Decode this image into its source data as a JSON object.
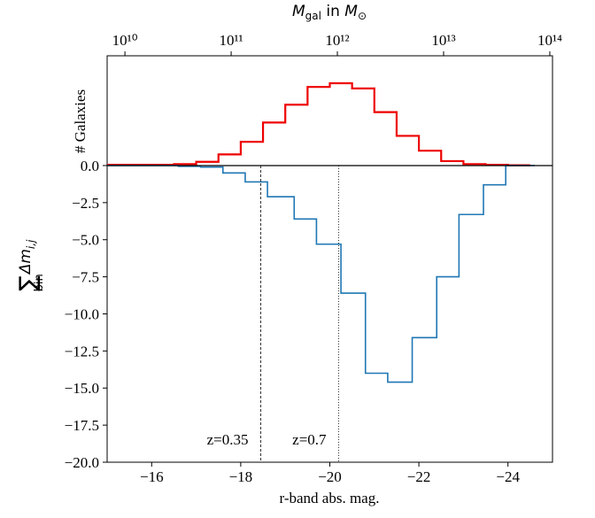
{
  "chart_data": {
    "type": "step",
    "xlabel": "r-band abs. mag.",
    "ylabel_parts": {
      "sum": "∑",
      "sum_sub": "bin",
      "main": "Δm",
      "main_sub": "i,j"
    },
    "galaxies_label": "# Galaxies",
    "xlim": [
      -15,
      -25
    ],
    "xticks": [
      {
        "value": -16,
        "label": "−16"
      },
      {
        "value": -18,
        "label": "−18"
      },
      {
        "value": -20,
        "label": "−20"
      },
      {
        "value": -22,
        "label": "−22"
      },
      {
        "value": -24,
        "label": "−24"
      }
    ],
    "ylim": [
      -20,
      7.4
    ],
    "yticks": [
      {
        "value": 0,
        "label": "0.0"
      },
      {
        "value": -2.5,
        "label": "−2.5"
      },
      {
        "value": -5,
        "label": "−5.0"
      },
      {
        "value": -7.5,
        "label": "−7.5"
      },
      {
        "value": -10,
        "label": "−10.0"
      },
      {
        "value": -12.5,
        "label": "−12.5"
      },
      {
        "value": -15,
        "label": "−15.0"
      },
      {
        "value": -17.5,
        "label": "−17.5"
      },
      {
        "value": -20,
        "label": "−20.0"
      }
    ],
    "top_axis": {
      "label_parts": {
        "m": "M",
        "m_sub": "gal",
        "in": " in ",
        "m2": "M",
        "m2_sub": "⊙"
      },
      "log": true,
      "xlim": [
        6800000000.0,
        106000000000000.0
      ],
      "xticks": [
        {
          "value": 10000000000.0,
          "label": "10¹⁰"
        },
        {
          "value": 100000000000.0,
          "label": "10¹¹"
        },
        {
          "value": 1000000000000.0,
          "label": "10¹²"
        },
        {
          "value": 10000000000000.0,
          "label": "10¹³"
        },
        {
          "value": 100000000000000.0,
          "label": "10¹⁴"
        }
      ]
    },
    "series": [
      {
        "name": "# Galaxies",
        "color": "#ee0000",
        "bins": [
          -15,
          -15.5,
          -16,
          -16.5,
          -17,
          -17.5,
          -18,
          -18.5,
          -19,
          -19.5,
          -20,
          -20.5,
          -21,
          -21.5,
          -22,
          -22.5,
          -23,
          -23.5,
          -24,
          -24.5
        ],
        "values": [
          0.05,
          0.05,
          0.05,
          0.1,
          0.25,
          0.75,
          1.6,
          2.9,
          4.1,
          5.3,
          5.55,
          5.2,
          3.6,
          2.0,
          1.0,
          0.3,
          0.1,
          0.05,
          0.02
        ]
      },
      {
        "name": "∑Δm",
        "color": "#1f77b4",
        "bins": [
          -15,
          -16.6,
          -17.1,
          -17.6,
          -18.1,
          -18.6,
          -19.2,
          -19.7,
          -20.25,
          -20.8,
          -21.3,
          -21.85,
          -22.4,
          -22.9,
          -23.45,
          -23.95,
          -24.6
        ],
        "values": [
          0,
          -0.05,
          -0.1,
          -0.5,
          -1.1,
          -2.1,
          -3.6,
          -5.3,
          -8.6,
          -14.0,
          -14.6,
          -11.6,
          -7.5,
          -3.3,
          -1.3,
          0
        ]
      }
    ],
    "vlines": [
      {
        "x": -18.45,
        "label": "z=0.35",
        "dash": "3,2"
      },
      {
        "x": -20.2,
        "label": "z=0.7",
        "dash": "1,2"
      }
    ],
    "zero_line": 0
  }
}
